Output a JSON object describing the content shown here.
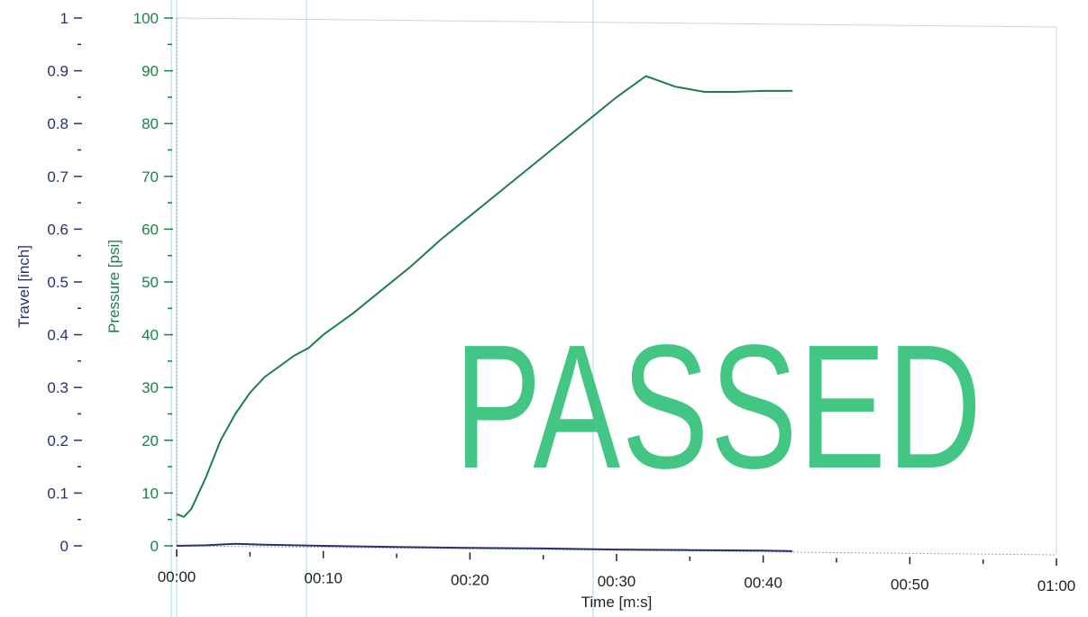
{
  "chart_data": {
    "type": "line",
    "x_axis": {
      "label": "Time [m:s]",
      "range_seconds": [
        0,
        60
      ],
      "ticks": [
        "00:00",
        "00:10",
        "00:20",
        "00:30",
        "00:40",
        "00:50",
        "01:00"
      ]
    },
    "y_axes": {
      "travel": {
        "label": "Travel [inch]",
        "range": [
          0,
          1
        ],
        "ticks": [
          "0",
          "0.1",
          "0.2",
          "0.3",
          "0.4",
          "0.5",
          "0.6",
          "0.7",
          "0.8",
          "0.9",
          "1"
        ]
      },
      "pressure": {
        "label": "Pressure [psi]",
        "range": [
          0,
          100
        ],
        "ticks": [
          "0",
          "10",
          "20",
          "30",
          "40",
          "50",
          "60",
          "70",
          "80",
          "90",
          "100"
        ]
      }
    },
    "series": [
      {
        "axis": "pressure",
        "color": "#1e7f4a",
        "x": [
          "00:00",
          "00:00.5",
          "00:01",
          "00:02",
          "00:03",
          "00:04",
          "00:05",
          "00:06",
          "00:07",
          "00:08",
          "00:09",
          "00:10",
          "00:12",
          "00:14",
          "00:16",
          "00:18",
          "00:20",
          "00:22",
          "00:24",
          "00:26",
          "00:28",
          "00:30",
          "00:31",
          "00:32",
          "00:33",
          "00:34",
          "00:35",
          "00:36",
          "00:38",
          "00:40",
          "00:42"
        ],
        "y": [
          6,
          5.5,
          7,
          13,
          20,
          25,
          29,
          32,
          34,
          36,
          37.5,
          40,
          44,
          48.5,
          53,
          58,
          62.5,
          67,
          71.5,
          76,
          80.5,
          85,
          87,
          89,
          88,
          87,
          86.5,
          86,
          86,
          86.2,
          86.2
        ]
      },
      {
        "axis": "travel",
        "color": "#2a3170",
        "x": [
          "00:00",
          "00:02",
          "00:04",
          "00:06",
          "00:08",
          "00:10",
          "00:15",
          "00:20",
          "00:25",
          "00:30",
          "00:35",
          "00:40",
          "00:42"
        ],
        "y": [
          0,
          0.001,
          0.004,
          0.002,
          0.001,
          0.0,
          -0.002,
          -0.004,
          -0.005,
          -0.007,
          -0.008,
          -0.009,
          -0.01
        ]
      }
    ],
    "grid": "faint",
    "legend": "none"
  },
  "colors": {
    "travel_axis": "#2a3170",
    "pressure_axis": "#1e7f4a",
    "stamp": "#2fbf76",
    "grid_highlight": "#bfe3f3"
  },
  "stamp": {
    "text": "PASSED"
  }
}
